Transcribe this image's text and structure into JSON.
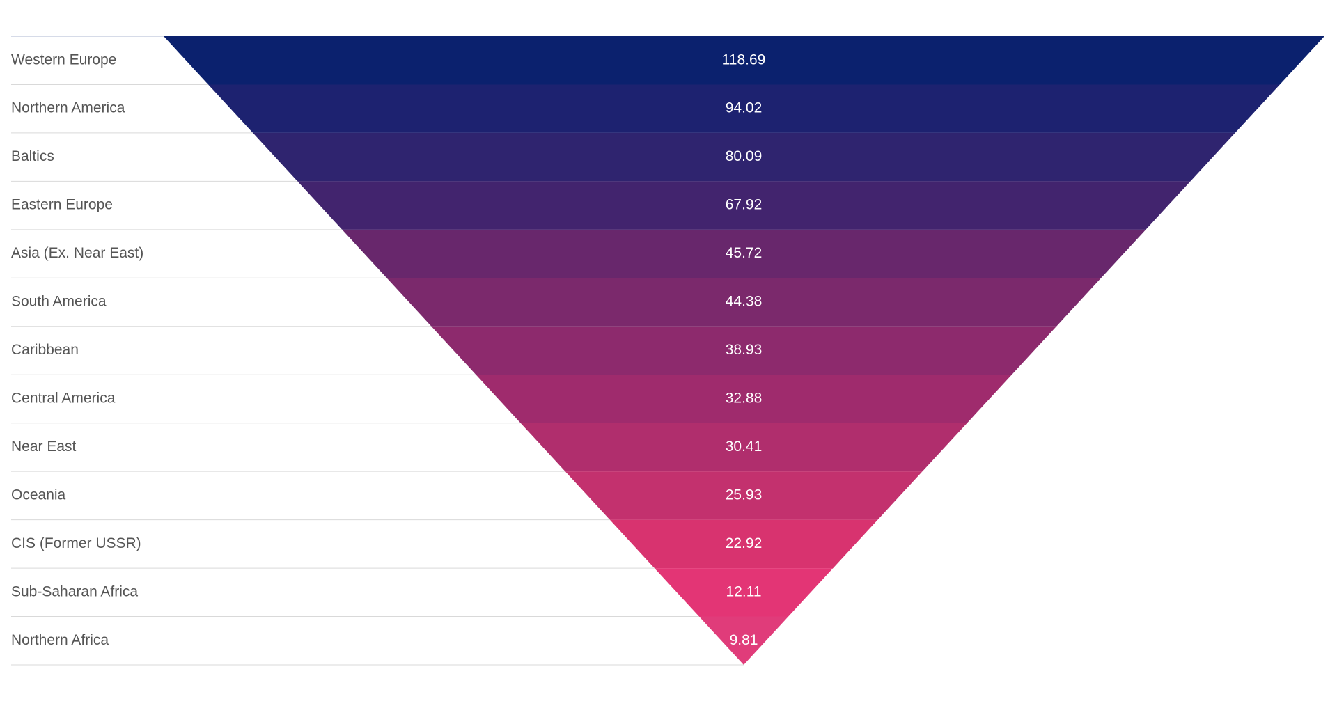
{
  "chart_data": {
    "type": "funnel",
    "title": "",
    "categories": [
      "Western Europe",
      "Northern America",
      "Baltics",
      "Eastern Europe",
      "Asia (Ex. Near East)",
      "South America",
      "Caribbean",
      "Central America",
      "Near East",
      "Oceania",
      "CIS (Former USSR)",
      "Sub-Saharan Africa",
      "Northern Africa"
    ],
    "values": [
      118.69,
      94.02,
      80.09,
      67.92,
      45.72,
      44.38,
      38.93,
      32.88,
      30.41,
      25.93,
      22.92,
      12.11,
      9.81
    ],
    "value_labels": [
      "118.69",
      "94.02",
      "80.09",
      "67.92",
      "45.72",
      "44.38",
      "38.93",
      "32.88",
      "30.41",
      "25.93",
      "22.92",
      "12.11",
      "9.81"
    ],
    "colors": [
      "#0b216e",
      "#1d2270",
      "#2f246f",
      "#42246e",
      "#68276c",
      "#7b296c",
      "#8d2a6d",
      "#9f2b6d",
      "#b02e6d",
      "#c3316e",
      "#d8336f",
      "#e33575",
      "#e03c7a"
    ],
    "label_color": "#555555",
    "value_label_color": "#ffffff",
    "row_divider_color": "#d9d9d9",
    "top_line_color": "#c8cfe0",
    "legend": "none",
    "grid": false
  }
}
